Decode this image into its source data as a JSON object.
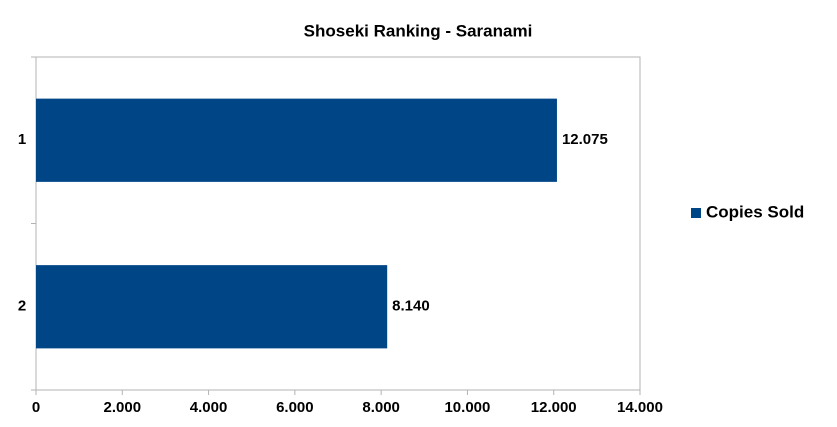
{
  "chart_data": {
    "type": "hbar",
    "title": "Shoseki Ranking - Saranami",
    "categories": [
      "1",
      "2"
    ],
    "series": [
      {
        "name": "Copies Sold",
        "color": "#004586",
        "values": [
          12075,
          8140
        ],
        "value_labels": [
          "12.075",
          "8.140"
        ]
      }
    ],
    "xlim": [
      0,
      14000
    ],
    "xticks": [
      0,
      {
        "value": 2000,
        "label": "2.000"
      },
      {
        "value": 4000,
        "label": "4.000"
      },
      {
        "value": 6000,
        "label": "6.000"
      },
      {
        "value": 8000,
        "label": "8.000"
      },
      {
        "value": 10000,
        "label": "10.000"
      },
      {
        "value": 12000,
        "label": "12.000"
      },
      {
        "value": 14000,
        "label": "14.000"
      }
    ],
    "grid": false,
    "legend": "right"
  }
}
